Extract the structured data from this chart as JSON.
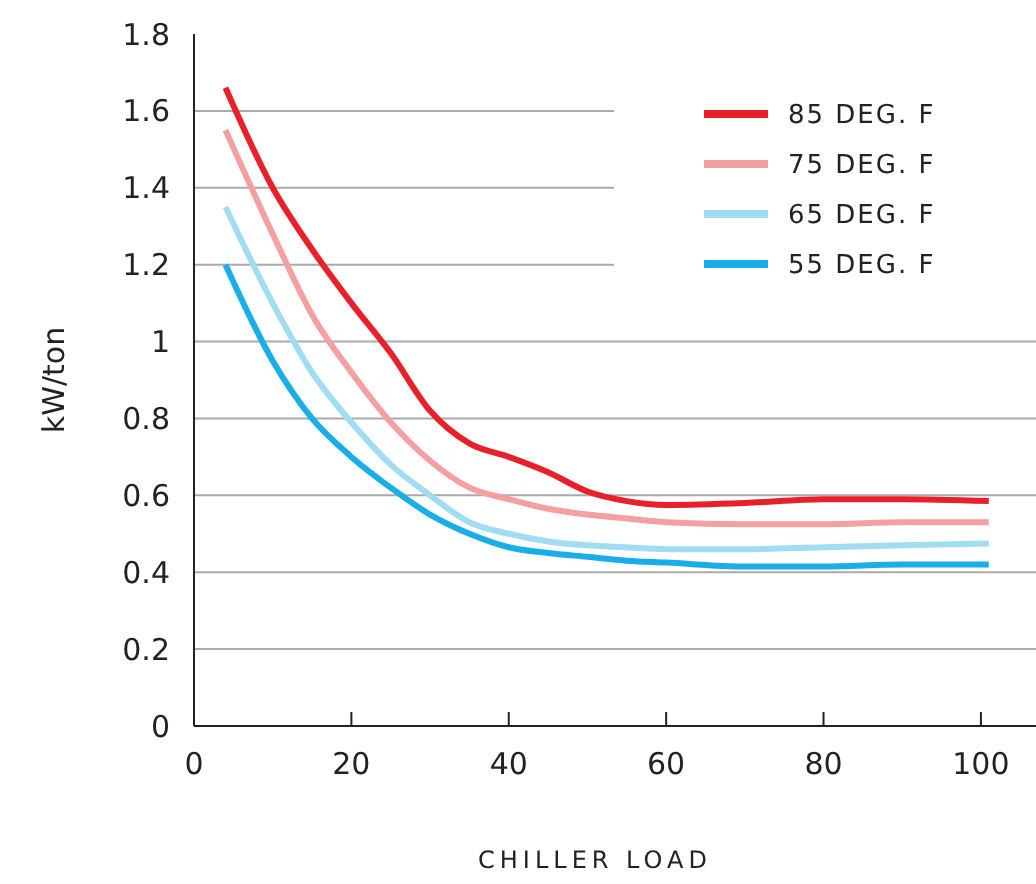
{
  "chart_data": {
    "type": "line",
    "xlabel": "CHILLER LOAD",
    "ylabel": "kW/ton",
    "xlim": [
      0,
      107
    ],
    "ylim": [
      0,
      1.8
    ],
    "xticks": [
      0,
      20,
      40,
      60,
      80,
      100
    ],
    "yticks": [
      0,
      0.2,
      0.4,
      0.6,
      0.8,
      1,
      1.2,
      1.4,
      1.6,
      1.8
    ],
    "grid": "y",
    "legend": "top right",
    "marker": "none",
    "line_style": "solid",
    "x": [
      4,
      10,
      15,
      20,
      25,
      30,
      35,
      40,
      45,
      50,
      55,
      60,
      70,
      80,
      90,
      101
    ],
    "series": [
      {
        "name": "85 DEG. F",
        "color": "#e8202a",
        "values": [
          1.66,
          1.4,
          1.24,
          1.1,
          0.97,
          0.82,
          0.735,
          0.7,
          0.66,
          0.61,
          0.585,
          0.575,
          0.58,
          0.59,
          0.59,
          0.585
        ]
      },
      {
        "name": "75 DEG. F",
        "color": "#f4a0a0",
        "values": [
          1.55,
          1.28,
          1.07,
          0.92,
          0.79,
          0.69,
          0.62,
          0.59,
          0.565,
          0.55,
          0.54,
          0.53,
          0.525,
          0.525,
          0.53,
          0.53
        ]
      },
      {
        "name": "65 DEG. F",
        "color": "#a0dcf2",
        "values": [
          1.35,
          1.1,
          0.92,
          0.79,
          0.68,
          0.6,
          0.53,
          0.5,
          0.48,
          0.47,
          0.465,
          0.46,
          0.46,
          0.465,
          0.47,
          0.475
        ]
      },
      {
        "name": "55 DEG. F",
        "color": "#1aaee8",
        "values": [
          1.2,
          0.95,
          0.8,
          0.7,
          0.62,
          0.55,
          0.5,
          0.465,
          0.45,
          0.44,
          0.43,
          0.425,
          0.415,
          0.415,
          0.42,
          0.42
        ]
      }
    ]
  }
}
